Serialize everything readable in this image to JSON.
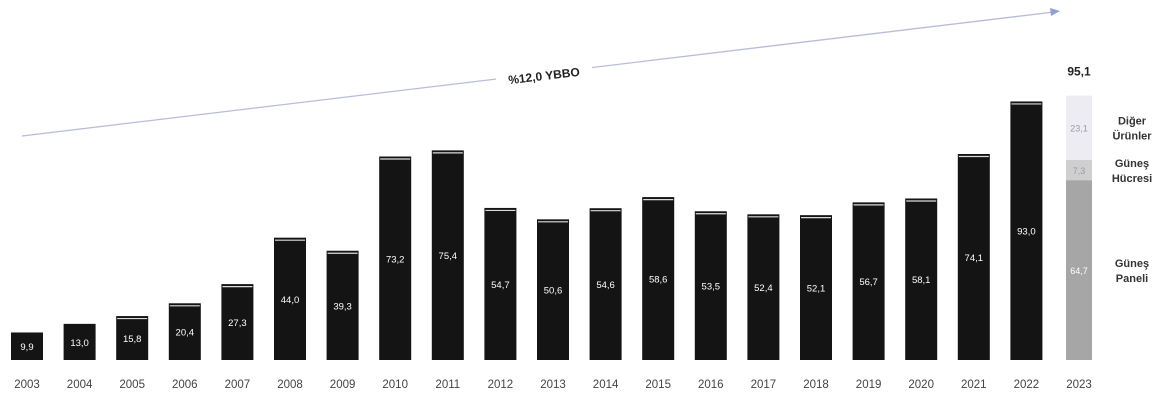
{
  "chart_data": {
    "type": "bar",
    "categories": [
      "2003",
      "2004",
      "2005",
      "2006",
      "2007",
      "2008",
      "2009",
      "2010",
      "2011",
      "2012",
      "2013",
      "2014",
      "2015",
      "2016",
      "2017",
      "2018",
      "2019",
      "2020",
      "2021",
      "2022",
      "2023"
    ],
    "values": [
      9.9,
      13.0,
      15.8,
      20.4,
      27.3,
      44.0,
      39.3,
      73.2,
      75.4,
      54.7,
      50.6,
      54.6,
      58.6,
      53.5,
      52.4,
      52.1,
      56.7,
      58.1,
      74.1,
      93.0,
      95.1
    ],
    "labels": [
      "9,9",
      "13,0",
      "15,8",
      "20,4",
      "27,3",
      "44,0",
      "39,3",
      "73,2",
      "75,4",
      "54,7",
      "50,6",
      "54,6",
      "58,6",
      "53,5",
      "52,4",
      "52,1",
      "56,7",
      "58,1",
      "74,1",
      "93,0",
      ""
    ],
    "stacked_last": {
      "category": "2023",
      "total_label": "95,1",
      "segments": [
        {
          "name": "Güneş Paneli",
          "value": 64.7,
          "label": "64,7",
          "color": "#a6a6a6"
        },
        {
          "name": "Güneş Hücresi",
          "value": 7.3,
          "label": "7,3",
          "color": "#cfcfcf"
        },
        {
          "name": "Diğer Ürünler",
          "value": 23.1,
          "label": "23,1",
          "color": "#ececf2"
        }
      ]
    },
    "bar_color": "#141414",
    "cagr_label": "%12,0 YBBO",
    "ylim": [
      0,
      100
    ],
    "title": "",
    "xlabel": "",
    "ylabel": ""
  }
}
